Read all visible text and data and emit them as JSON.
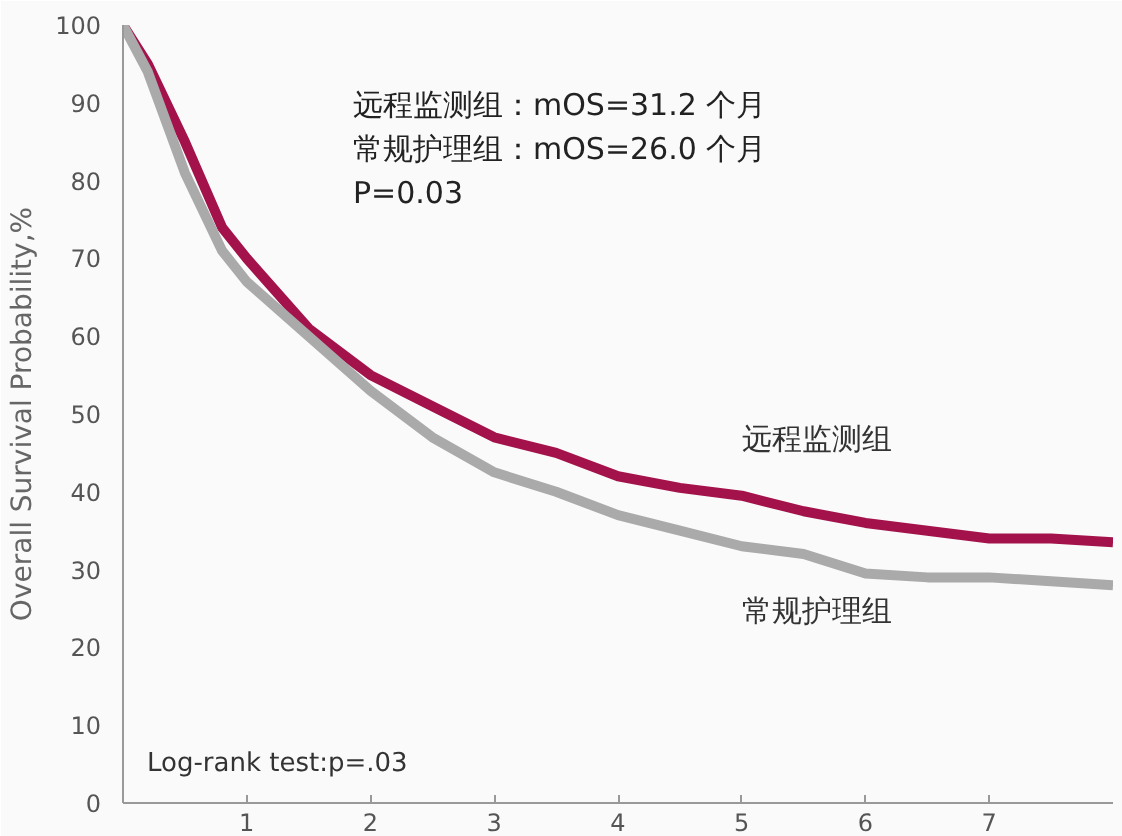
{
  "chart_data": {
    "type": "line",
    "ylabel": "Overall Survival Probability,%",
    "x": [
      0,
      0.2,
      0.5,
      0.8,
      1.0,
      1.5,
      2.0,
      2.5,
      3.0,
      3.5,
      4.0,
      4.5,
      5.0,
      5.5,
      6.0,
      6.5,
      7.0,
      7.5,
      8.0
    ],
    "series": [
      {
        "name": "远程监测组",
        "color": "#a3124a",
        "values": [
          100,
          95,
          85,
          74,
          70,
          61,
          55,
          51,
          47,
          45,
          42,
          40.5,
          39.5,
          37.5,
          36,
          35,
          34,
          34,
          33.5
        ]
      },
      {
        "name": "常规护理组",
        "color": "#aaaaaa",
        "values": [
          100,
          94,
          81,
          71,
          67,
          60,
          53,
          47,
          42.5,
          40,
          37,
          35,
          33,
          32,
          29.5,
          29,
          29,
          28.5,
          28
        ]
      }
    ],
    "annotations": [
      "远程监测组：mOS=31.2 个月",
      "常规护理组：mOS=26.0 个月",
      "P=0.03",
      "Log-rank test:p=.03"
    ],
    "xlim": [
      0,
      8
    ],
    "xticks": [
      1,
      2,
      3,
      4,
      5,
      6,
      7
    ],
    "ylim": [
      0,
      100
    ],
    "yticks": [
      0,
      10,
      20,
      30,
      40,
      50,
      60,
      70,
      80,
      90,
      100
    ],
    "grid": false,
    "line_style": "solid",
    "marker": "none"
  }
}
